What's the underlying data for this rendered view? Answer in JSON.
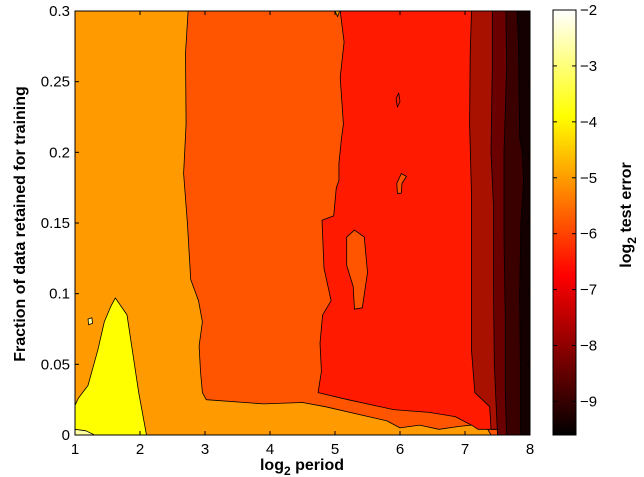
{
  "chart_data": {
    "type": "heatmap",
    "subtype": "filled-contour",
    "title": "",
    "xlabel": {
      "base": "log",
      "sub": "2",
      "rest": " period"
    },
    "ylabel": "Fraction of data retained for training",
    "colorbar_label": {
      "base": "log",
      "sub": "2",
      "rest": " test error"
    },
    "xlim": [
      1,
      8
    ],
    "ylim": [
      0,
      0.3
    ],
    "clim": [
      -9.6,
      -2
    ],
    "x_ticks": [
      1,
      2,
      3,
      4,
      5,
      6,
      7,
      8
    ],
    "x_tick_labels": [
      "1",
      "2",
      "3",
      "4",
      "5",
      "6",
      "7",
      "8"
    ],
    "y_ticks": [
      0,
      0.05,
      0.1,
      0.15,
      0.2,
      0.25,
      0.3
    ],
    "y_tick_labels": [
      "0",
      "0.05",
      "0.1",
      "0.15",
      "0.2",
      "0.25",
      "0.3"
    ],
    "colorbar_ticks": [
      -2,
      -3,
      -4,
      -5,
      -6,
      -7,
      -8,
      -9
    ],
    "colorbar_tick_labels": [
      "−2",
      "−3",
      "−4",
      "−5",
      "−6",
      "−7",
      "−8",
      "−9"
    ],
    "colormap": "hot",
    "contour_levels": [
      {
        "level": "-3.5",
        "color": "#ffff9e"
      },
      {
        "level": "-4",
        "color": "#ffff00"
      },
      {
        "level": "-5",
        "color": "#ff9a00"
      },
      {
        "level": "-6",
        "color": "#ff5500"
      },
      {
        "level": "-7",
        "color": "#ff1a00"
      },
      {
        "level": "-8",
        "color": "#a81000"
      },
      {
        "level": "-8.7",
        "color": "#6a0000"
      },
      {
        "level": "-9.2",
        "color": "#3a0000"
      },
      {
        "level": "-9.6",
        "color": "#140000"
      }
    ],
    "regions": [
      {
        "level": "-5",
        "boundary": [
          [
            1,
            0
          ],
          [
            8,
            0
          ],
          [
            8,
            0.3
          ],
          [
            1,
            0.3
          ]
        ]
      },
      {
        "level": "-4",
        "boundary": [
          [
            1,
            0.021
          ],
          [
            1.05,
            0.026
          ],
          [
            1.2,
            0.035
          ],
          [
            1.35,
            0.06
          ],
          [
            1.45,
            0.08
          ],
          [
            1.55,
            0.091
          ],
          [
            1.62,
            0.097
          ],
          [
            1.8,
            0.085
          ],
          [
            1.98,
            0.03
          ],
          [
            2.1,
            0
          ],
          [
            1,
            0
          ]
        ]
      },
      {
        "level": "-3.5",
        "boundary": [
          [
            1,
            0.004
          ],
          [
            1.17,
            0.003
          ],
          [
            1.3,
            0
          ],
          [
            1,
            0
          ]
        ]
      },
      {
        "level": "-6",
        "boundary": [
          [
            2.74,
            0.3
          ],
          [
            2.7,
            0.27
          ],
          [
            2.71,
            0.22
          ],
          [
            2.67,
            0.185
          ],
          [
            2.73,
            0.15
          ],
          [
            2.78,
            0.11
          ],
          [
            2.9,
            0.095
          ],
          [
            2.96,
            0.08
          ],
          [
            2.91,
            0.063
          ],
          [
            2.93,
            0.045
          ],
          [
            2.96,
            0.03
          ],
          [
            3.02,
            0.025
          ],
          [
            3.9,
            0.022
          ],
          [
            4.5,
            0.023
          ],
          [
            4.85,
            0.02
          ],
          [
            5.8,
            0.01
          ],
          [
            6.0,
            0.005
          ],
          [
            6.3,
            0.007
          ],
          [
            6.6,
            0.004
          ],
          [
            6.9,
            0.006
          ],
          [
            7.3,
            0.008
          ],
          [
            7.4,
            0
          ],
          [
            8,
            0
          ],
          [
            8,
            0.3
          ]
        ]
      },
      {
        "level": "-7",
        "boundary": [
          [
            5.08,
            0.3
          ],
          [
            5.14,
            0.278
          ],
          [
            5.08,
            0.253
          ],
          [
            5.13,
            0.22
          ],
          [
            5.1,
            0.21
          ],
          [
            5.06,
            0.192
          ],
          [
            5.06,
            0.18
          ],
          [
            5.02,
            0.175
          ],
          [
            4.98,
            0.155
          ],
          [
            4.8,
            0.152
          ],
          [
            4.83,
            0.118
          ],
          [
            4.94,
            0.095
          ],
          [
            4.81,
            0.085
          ],
          [
            4.77,
            0.065
          ],
          [
            4.79,
            0.045
          ],
          [
            4.74,
            0.03
          ],
          [
            5.2,
            0.025
          ],
          [
            5.9,
            0.018
          ],
          [
            6.45,
            0.016
          ],
          [
            6.85,
            0.013
          ],
          [
            7.1,
            0.007
          ],
          [
            7.2,
            0.004
          ],
          [
            8,
            0.004
          ],
          [
            8,
            0.3
          ]
        ]
      },
      {
        "level": "-5",
        "boundary": [
          [
            5.0,
            0.3
          ],
          [
            5.04,
            0.296
          ],
          [
            5.07,
            0.3
          ]
        ]
      },
      {
        "level": "-6",
        "boundary": [
          [
            5.18,
            0.14
          ],
          [
            5.3,
            0.145
          ],
          [
            5.45,
            0.14
          ],
          [
            5.5,
            0.115
          ],
          [
            5.42,
            0.09
          ],
          [
            5.3,
            0.089
          ],
          [
            5.28,
            0.105
          ],
          [
            5.18,
            0.12
          ]
        ]
      },
      {
        "level": "-6",
        "boundary": [
          [
            5.95,
            0.178
          ],
          [
            6.02,
            0.185
          ],
          [
            6.1,
            0.183
          ],
          [
            6.03,
            0.178
          ],
          [
            6.02,
            0.171
          ],
          [
            5.96,
            0.171
          ]
        ]
      },
      {
        "level": "-8",
        "boundary": [
          [
            7.1,
            0.3
          ],
          [
            7.08,
            0.27
          ],
          [
            7.07,
            0.22
          ],
          [
            7.1,
            0.17
          ],
          [
            7.1,
            0.12
          ],
          [
            7.1,
            0.06
          ],
          [
            7.15,
            0.03
          ],
          [
            7.38,
            0.02
          ],
          [
            7.4,
            0.004
          ],
          [
            8,
            0.004
          ],
          [
            8,
            0.3
          ]
        ]
      },
      {
        "level": "-8.7",
        "boundary": [
          [
            7.42,
            0.3
          ],
          [
            7.42,
            0.26
          ],
          [
            7.4,
            0.2
          ],
          [
            7.44,
            0.16
          ],
          [
            7.44,
            0.1
          ],
          [
            7.45,
            0.05
          ],
          [
            7.48,
            0.02
          ],
          [
            7.5,
            0
          ],
          [
            8,
            0
          ],
          [
            8,
            0.3
          ]
        ]
      },
      {
        "level": "-9.2",
        "boundary": [
          [
            7.63,
            0.3
          ],
          [
            7.64,
            0.26
          ],
          [
            7.6,
            0.2
          ],
          [
            7.6,
            0.14
          ],
          [
            7.62,
            0.08
          ],
          [
            7.62,
            0.03
          ],
          [
            7.64,
            0
          ],
          [
            8,
            0
          ],
          [
            8,
            0.3
          ]
        ]
      },
      {
        "level": "-9.6",
        "boundary": [
          [
            7.8,
            0.3
          ],
          [
            7.82,
            0.28
          ],
          [
            7.83,
            0.25
          ],
          [
            7.84,
            0.21
          ],
          [
            7.88,
            0.2
          ],
          [
            7.9,
            0.18
          ],
          [
            7.86,
            0.15
          ],
          [
            7.84,
            0.1
          ],
          [
            7.85,
            0.05
          ],
          [
            7.85,
            0
          ],
          [
            8,
            0
          ],
          [
            8,
            0.3
          ]
        ]
      },
      {
        "level": "-3.5",
        "boundary": [
          [
            1.2,
            0.082
          ],
          [
            1.26,
            0.083
          ],
          [
            1.27,
            0.079
          ],
          [
            1.21,
            0.078
          ]
        ]
      },
      {
        "level": "-7",
        "boundary": [
          [
            5.94,
            0.238
          ],
          [
            5.98,
            0.242
          ],
          [
            6.0,
            0.236
          ],
          [
            5.96,
            0.232
          ]
        ]
      }
    ]
  }
}
